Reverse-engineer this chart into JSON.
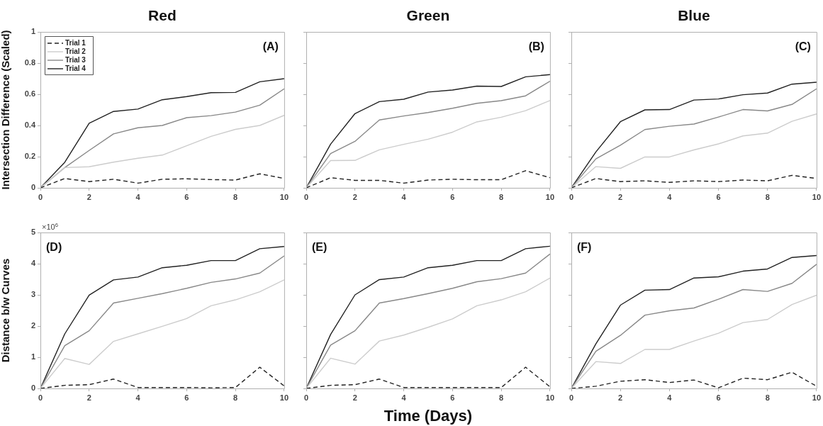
{
  "chart_data": [
    {
      "type": "line",
      "title": "Red",
      "ylabel": "Intersection Difference (Scaled)",
      "annotations": [
        "(A)"
      ],
      "x": [
        0,
        1,
        2,
        3,
        4,
        5,
        6,
        7,
        8,
        9,
        10
      ],
      "xlim": [
        0,
        10
      ],
      "xticks": [
        0,
        2,
        4,
        6,
        8,
        10
      ],
      "ylim": [
        0,
        1
      ],
      "yticks": [
        0,
        0.2,
        0.4,
        0.6,
        0.8,
        1
      ],
      "grid": false,
      "marker": "none",
      "legend": "top left",
      "series": [
        {
          "name": "Trial 1",
          "color": "#222222",
          "line_style": "dashed",
          "values": [
            0,
            0.06,
            0.04,
            0.055,
            0.03,
            0.055,
            0.058,
            0.053,
            0.05,
            0.09,
            0.06
          ]
        },
        {
          "name": "Trial 2",
          "color": "#cccccc",
          "line_style": "solid",
          "values": [
            0,
            0.13,
            0.135,
            0.165,
            0.19,
            0.21,
            0.27,
            0.33,
            0.375,
            0.4,
            0.465
          ]
        },
        {
          "name": "Trial 3",
          "color": "#888888",
          "line_style": "solid",
          "values": [
            0,
            0.13,
            0.24,
            0.346,
            0.385,
            0.4,
            0.45,
            0.463,
            0.486,
            0.53,
            0.635
          ]
        },
        {
          "name": "Trial 4",
          "color": "#222222",
          "line_style": "solid",
          "values": [
            0,
            0.164,
            0.414,
            0.49,
            0.505,
            0.565,
            0.585,
            0.61,
            0.612,
            0.68,
            0.7
          ]
        }
      ]
    },
    {
      "type": "line",
      "title": "Green",
      "annotations": [
        "(B)"
      ],
      "x": [
        0,
        1,
        2,
        3,
        4,
        5,
        6,
        7,
        8,
        9,
        10
      ],
      "xlim": [
        0,
        10
      ],
      "xticks": [
        0,
        2,
        4,
        6,
        8,
        10
      ],
      "ylim": [
        0,
        1
      ],
      "yticks": [
        0,
        0.2,
        0.4,
        0.6,
        0.8,
        1
      ],
      "grid": false,
      "marker": "none",
      "tick_labels": "x",
      "series": [
        {
          "color": "#222222",
          "line_style": "dashed",
          "values": [
            0,
            0.065,
            0.048,
            0.048,
            0.03,
            0.05,
            0.055,
            0.052,
            0.052,
            0.11,
            0.065
          ]
        },
        {
          "color": "#cccccc",
          "line_style": "solid",
          "values": [
            0,
            0.175,
            0.176,
            0.244,
            0.279,
            0.312,
            0.357,
            0.423,
            0.453,
            0.495,
            0.56
          ]
        },
        {
          "color": "#888888",
          "line_style": "solid",
          "values": [
            0,
            0.22,
            0.298,
            0.435,
            0.461,
            0.483,
            0.51,
            0.542,
            0.559,
            0.59,
            0.684
          ]
        },
        {
          "color": "#222222",
          "line_style": "solid",
          "values": [
            0,
            0.28,
            0.476,
            0.553,
            0.568,
            0.614,
            0.627,
            0.652,
            0.65,
            0.712,
            0.726
          ]
        }
      ]
    },
    {
      "type": "line",
      "title": "Blue",
      "annotations": [
        "(C)"
      ],
      "x": [
        0,
        1,
        2,
        3,
        4,
        5,
        6,
        7,
        8,
        9,
        10
      ],
      "xlim": [
        0,
        10
      ],
      "xticks": [
        0,
        2,
        4,
        6,
        8,
        10
      ],
      "ylim": [
        0,
        1
      ],
      "yticks": [
        0,
        0.2,
        0.4,
        0.6,
        0.8,
        1
      ],
      "grid": false,
      "marker": "none",
      "tick_labels": "x",
      "series": [
        {
          "color": "#222222",
          "line_style": "dashed",
          "values": [
            0,
            0.06,
            0.04,
            0.045,
            0.035,
            0.045,
            0.04,
            0.05,
            0.045,
            0.08,
            0.06
          ]
        },
        {
          "color": "#cccccc",
          "line_style": "solid",
          "values": [
            0,
            0.136,
            0.125,
            0.198,
            0.198,
            0.243,
            0.282,
            0.333,
            0.351,
            0.427,
            0.474
          ]
        },
        {
          "color": "#888888",
          "line_style": "solid",
          "values": [
            0,
            0.186,
            0.273,
            0.374,
            0.395,
            0.409,
            0.454,
            0.502,
            0.493,
            0.535,
            0.635
          ]
        },
        {
          "color": "#222222",
          "line_style": "solid",
          "values": [
            0,
            0.23,
            0.424,
            0.5,
            0.502,
            0.563,
            0.57,
            0.597,
            0.608,
            0.665,
            0.677
          ]
        }
      ]
    },
    {
      "type": "line",
      "ylabel": "Distance b/w Curves",
      "annotations": [
        "×10$^{6}$",
        "(D)"
      ],
      "x": [
        0,
        1,
        2,
        3,
        4,
        5,
        6,
        7,
        8,
        9,
        10
      ],
      "xlim": [
        0,
        10
      ],
      "xticks": [
        0,
        2,
        4,
        6,
        8,
        10
      ],
      "ylim": [
        0,
        5
      ],
      "yticks": [
        0,
        1,
        2,
        3,
        4,
        5
      ],
      "grid": false,
      "marker": "none",
      "series": [
        {
          "color": "#222222",
          "line_style": "dashed",
          "values": [
            0,
            0.1,
            0.12,
            0.3,
            0.03,
            0.03,
            0.03,
            0.02,
            0.03,
            0.68,
            0.08
          ]
        },
        {
          "color": "#cccccc",
          "line_style": "solid",
          "values": [
            0,
            0.96,
            0.77,
            1.51,
            1.75,
            1.99,
            2.24,
            2.65,
            2.84,
            3.1,
            3.48
          ]
        },
        {
          "color": "#888888",
          "line_style": "solid",
          "values": [
            0,
            1.37,
            1.85,
            2.74,
            2.89,
            3.04,
            3.21,
            3.4,
            3.51,
            3.7,
            4.25
          ]
        },
        {
          "color": "#222222",
          "line_style": "solid",
          "values": [
            0,
            1.75,
            2.99,
            3.48,
            3.57,
            3.87,
            3.95,
            4.1,
            4.1,
            4.48,
            4.55
          ]
        }
      ]
    },
    {
      "type": "line",
      "xlabel": "Time (Days)",
      "annotations": [
        "(E)"
      ],
      "x": [
        0,
        1,
        2,
        3,
        4,
        5,
        6,
        7,
        8,
        9,
        10
      ],
      "xlim": [
        0,
        10
      ],
      "xticks": [
        0,
        2,
        4,
        6,
        8,
        10
      ],
      "ylim": [
        0,
        5
      ],
      "yticks": [
        0,
        1,
        2,
        3,
        4,
        5
      ],
      "grid": false,
      "marker": "none",
      "tick_labels": "x",
      "series": [
        {
          "color": "#222222",
          "line_style": "dashed",
          "values": [
            0,
            0.1,
            0.12,
            0.3,
            0.03,
            0.03,
            0.03,
            0.03,
            0.03,
            0.68,
            0.05
          ]
        },
        {
          "color": "#cccccc",
          "line_style": "solid",
          "values": [
            0,
            0.97,
            0.78,
            1.52,
            1.71,
            1.96,
            2.23,
            2.65,
            2.84,
            3.1,
            3.54
          ]
        },
        {
          "color": "#888888",
          "line_style": "solid",
          "values": [
            0,
            1.39,
            1.85,
            2.74,
            2.88,
            3.04,
            3.21,
            3.42,
            3.52,
            3.7,
            4.31
          ]
        },
        {
          "color": "#222222",
          "line_style": "solid",
          "values": [
            0,
            1.73,
            3.0,
            3.49,
            3.57,
            3.87,
            3.95,
            4.1,
            4.1,
            4.48,
            4.56
          ]
        }
      ]
    },
    {
      "type": "line",
      "annotations": [
        "(F)"
      ],
      "x": [
        0,
        1,
        2,
        3,
        4,
        5,
        6,
        7,
        8,
        9,
        10
      ],
      "xlim": [
        0,
        10
      ],
      "xticks": [
        0,
        2,
        4,
        6,
        8,
        10
      ],
      "ylim": [
        0,
        5
      ],
      "yticks": [
        0,
        1,
        2,
        3,
        4,
        5
      ],
      "grid": false,
      "marker": "none",
      "tick_labels": "x",
      "series": [
        {
          "color": "#222222",
          "line_style": "dashed",
          "values": [
            0,
            0.07,
            0.23,
            0.28,
            0.19,
            0.27,
            0.02,
            0.33,
            0.28,
            0.52,
            0.07
          ]
        },
        {
          "color": "#cccccc",
          "line_style": "solid",
          "values": [
            0,
            0.86,
            0.8,
            1.25,
            1.25,
            1.52,
            1.77,
            2.11,
            2.21,
            2.69,
            2.99
          ]
        },
        {
          "color": "#888888",
          "line_style": "solid",
          "values": [
            0,
            1.19,
            1.7,
            2.35,
            2.49,
            2.58,
            2.86,
            3.17,
            3.11,
            3.37,
            3.98
          ]
        },
        {
          "color": "#222222",
          "line_style": "solid",
          "values": [
            0,
            1.43,
            2.67,
            3.15,
            3.17,
            3.54,
            3.58,
            3.76,
            3.83,
            4.2,
            4.26
          ]
        }
      ]
    }
  ]
}
